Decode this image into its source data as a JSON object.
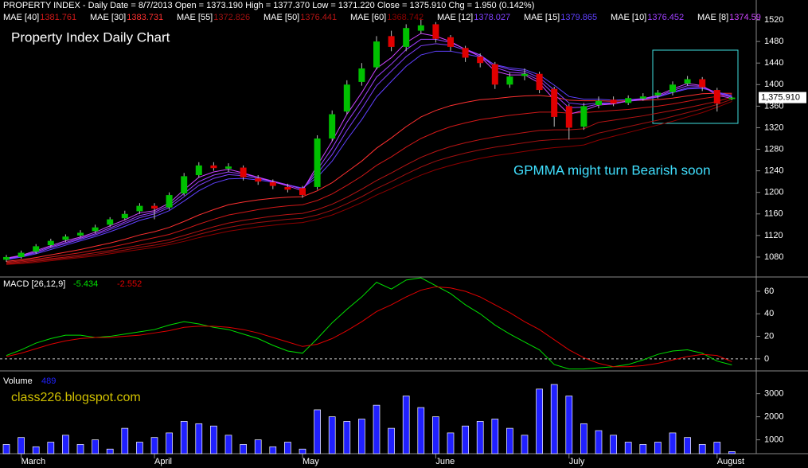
{
  "header": "PROPERTY INDEX - Daily Date = 8/7/2013  Open = 1373.190 High = 1377.370 Low = 1371.220 Close = 1375.910 Chg = 1.950 (0.142%)",
  "watermark": "class226.blogspot.com",
  "chart_data": [
    {
      "type": "candlestick",
      "title": "Property Index Daily Chart",
      "annotation": "GPMMA might turn Bearish soon",
      "categories": [
        null,
        "March",
        null,
        null,
        null,
        null,
        null,
        null,
        null,
        null,
        "April",
        null,
        null,
        null,
        null,
        null,
        null,
        null,
        null,
        null,
        "May",
        null,
        null,
        null,
        null,
        null,
        null,
        null,
        null,
        "June",
        null,
        null,
        null,
        null,
        null,
        null,
        null,
        null,
        "July",
        null,
        null,
        null,
        null,
        null,
        null,
        null,
        null,
        null,
        "August",
        null
      ],
      "open": [
        1075,
        1080,
        1090,
        1102,
        1112,
        1120,
        1128,
        1140,
        1152,
        1165,
        1175,
        1172,
        1198,
        1232,
        1250,
        1244,
        1246,
        1226,
        1219,
        1210,
        1208,
        1210,
        1300,
        1350,
        1405,
        1432,
        1490,
        1470,
        1500,
        1512,
        1488,
        1468,
        1452,
        1438,
        1400,
        1416,
        1420,
        1392,
        1360,
        1322,
        1362,
        1372,
        1366,
        1374,
        1380,
        1386,
        1402,
        1410,
        1390,
        1373.19
      ],
      "high": [
        1084,
        1092,
        1104,
        1114,
        1122,
        1130,
        1140,
        1154,
        1166,
        1180,
        1180,
        1200,
        1236,
        1256,
        1256,
        1254,
        1250,
        1232,
        1224,
        1216,
        1212,
        1306,
        1352,
        1408,
        1440,
        1490,
        1500,
        1512,
        1522,
        1516,
        1492,
        1472,
        1458,
        1442,
        1422,
        1430,
        1424,
        1396,
        1364,
        1366,
        1378,
        1378,
        1380,
        1384,
        1390,
        1406,
        1416,
        1414,
        1394,
        1377.37
      ],
      "low": [
        1071,
        1077,
        1086,
        1098,
        1108,
        1116,
        1124,
        1136,
        1148,
        1160,
        1150,
        1168,
        1194,
        1228,
        1240,
        1238,
        1222,
        1214,
        1206,
        1200,
        1190,
        1205,
        1295,
        1345,
        1398,
        1428,
        1462,
        1462,
        1494,
        1478,
        1462,
        1442,
        1432,
        1392,
        1394,
        1408,
        1384,
        1322,
        1298,
        1316,
        1356,
        1360,
        1362,
        1370,
        1374,
        1380,
        1398,
        1388,
        1350,
        1371.22
      ],
      "close": [
        1080,
        1088,
        1100,
        1110,
        1118,
        1125,
        1135,
        1150,
        1160,
        1175,
        1170,
        1195,
        1230,
        1250,
        1245,
        1248,
        1228,
        1220,
        1212,
        1205,
        1195,
        1300,
        1345,
        1400,
        1430,
        1480,
        1470,
        1505,
        1510,
        1485,
        1470,
        1450,
        1440,
        1400,
        1415,
        1420,
        1390,
        1340,
        1320,
        1360,
        1370,
        1365,
        1375,
        1378,
        1385,
        1400,
        1410,
        1395,
        1365,
        1375.91
      ],
      "up_color": "#00c000",
      "down_color": "#e00000",
      "series": [
        {
          "name": "MAE [40]",
          "color": "#d01818",
          "values": [
            1070,
            1073,
            1076,
            1080,
            1084,
            1088,
            1093,
            1098,
            1104,
            1110,
            1116,
            1122,
            1131,
            1141,
            1150,
            1158,
            1163,
            1168,
            1172,
            1175,
            1177,
            1185,
            1197,
            1213,
            1230,
            1250,
            1266,
            1284,
            1300,
            1312,
            1322,
            1329,
            1335,
            1339,
            1343,
            1346,
            1349,
            1349,
            1347,
            1348,
            1350,
            1352,
            1354,
            1357,
            1360,
            1364,
            1369,
            1374,
            1378,
            1381.761
          ]
        },
        {
          "name": "MAE [30]",
          "color": "#ff3030",
          "values": [
            1072,
            1075,
            1079,
            1084,
            1089,
            1094,
            1100,
            1106,
            1113,
            1121,
            1127,
            1135,
            1146,
            1158,
            1168,
            1177,
            1182,
            1186,
            1189,
            1191,
            1192,
            1203,
            1218,
            1238,
            1258,
            1282,
            1301,
            1322,
            1340,
            1352,
            1361,
            1367,
            1372,
            1374,
            1377,
            1379,
            1380,
            1377,
            1371,
            1370,
            1370,
            1369,
            1370,
            1371,
            1372,
            1375,
            1379,
            1383,
            1384,
            1383.731
          ]
        },
        {
          "name": "MAE [55]",
          "color": "#a01010",
          "values": [
            1067,
            1069,
            1072,
            1075,
            1078,
            1081,
            1085,
            1089,
            1093,
            1098,
            1102,
            1107,
            1114,
            1122,
            1129,
            1135,
            1140,
            1144,
            1147,
            1150,
            1152,
            1158,
            1167,
            1179,
            1192,
            1207,
            1220,
            1234,
            1247,
            1258,
            1266,
            1273,
            1279,
            1284,
            1288,
            1292,
            1296,
            1298,
            1299,
            1301,
            1310,
            1316,
            1322,
            1328,
            1334,
            1341,
            1348,
            1355,
            1363,
            1372.826
          ]
        },
        {
          "name": "MAE [50]",
          "color": "#b81414",
          "values": [
            1068,
            1071,
            1074,
            1077,
            1080,
            1084,
            1088,
            1092,
            1097,
            1102,
            1107,
            1112,
            1120,
            1128,
            1136,
            1143,
            1148,
            1152,
            1156,
            1159,
            1161,
            1168,
            1178,
            1191,
            1206,
            1222,
            1236,
            1251,
            1265,
            1276,
            1285,
            1292,
            1298,
            1303,
            1307,
            1311,
            1315,
            1316,
            1316,
            1318,
            1330,
            1334,
            1338,
            1342,
            1347,
            1352,
            1357,
            1363,
            1369,
            1376.441
          ]
        },
        {
          "name": "MAE [60]",
          "color": "#900000",
          "values": [
            1066,
            1068,
            1070,
            1073,
            1076,
            1079,
            1082,
            1086,
            1090,
            1094,
            1098,
            1103,
            1109,
            1116,
            1122,
            1128,
            1132,
            1136,
            1139,
            1142,
            1144,
            1150,
            1158,
            1169,
            1181,
            1195,
            1207,
            1220,
            1232,
            1242,
            1250,
            1257,
            1263,
            1268,
            1272,
            1276,
            1280,
            1283,
            1285,
            1288,
            1297,
            1304,
            1311,
            1318,
            1325,
            1332,
            1340,
            1348,
            1358,
            1368.742
          ]
        },
        {
          "name": "MAE [12]",
          "color": "#8040ff",
          "values": [
            1076,
            1081,
            1088,
            1097,
            1105,
            1113,
            1121,
            1131,
            1142,
            1153,
            1160,
            1172,
            1192,
            1213,
            1226,
            1233,
            1231,
            1226,
            1220,
            1214,
            1207,
            1235,
            1270,
            1315,
            1355,
            1398,
            1425,
            1452,
            1472,
            1476,
            1473,
            1464,
            1455,
            1436,
            1428,
            1425,
            1413,
            1390,
            1366,
            1363,
            1366,
            1366,
            1369,
            1372,
            1377,
            1386,
            1394,
            1395,
            1385,
            1378.027
          ]
        },
        {
          "name": "MAE [15]",
          "color": "#6040ff",
          "values": [
            1075,
            1080,
            1086,
            1094,
            1102,
            1110,
            1118,
            1127,
            1137,
            1148,
            1155,
            1166,
            1184,
            1203,
            1217,
            1225,
            1226,
            1223,
            1219,
            1214,
            1208,
            1228,
            1258,
            1298,
            1335,
            1377,
            1406,
            1434,
            1455,
            1462,
            1462,
            1457,
            1451,
            1437,
            1431,
            1428,
            1418,
            1399,
            1378,
            1373,
            1373,
            1371,
            1372,
            1374,
            1377,
            1385,
            1392,
            1393,
            1386,
            1379.865
          ]
        },
        {
          "name": "MAE [10]",
          "color": "#a040ff",
          "values": [
            1077,
            1082,
            1090,
            1099,
            1107,
            1115,
            1123,
            1134,
            1145,
            1157,
            1163,
            1176,
            1198,
            1220,
            1232,
            1238,
            1234,
            1228,
            1221,
            1214,
            1206,
            1242,
            1282,
            1330,
            1370,
            1414,
            1438,
            1465,
            1484,
            1484,
            1478,
            1466,
            1455,
            1432,
            1423,
            1421,
            1408,
            1382,
            1357,
            1358,
            1364,
            1365,
            1369,
            1373,
            1378,
            1389,
            1398,
            1397,
            1384,
            1376.452
          ]
        },
        {
          "name": "MAE [8]",
          "color": "#cc44ff",
          "values": [
            1078,
            1083,
            1092,
            1101,
            1110,
            1117,
            1126,
            1138,
            1149,
            1162,
            1166,
            1180,
            1205,
            1228,
            1238,
            1243,
            1236,
            1228,
            1220,
            1212,
            1203,
            1250,
            1295,
            1345,
            1385,
            1430,
            1450,
            1478,
            1495,
            1490,
            1480,
            1465,
            1452,
            1425,
            1418,
            1418,
            1403,
            1372,
            1345,
            1352,
            1362,
            1364,
            1370,
            1374,
            1380,
            1392,
            1402,
            1398,
            1380,
            1374.59
          ]
        }
      ],
      "ylim": [
        1043,
        1557
      ],
      "yticks": [
        1080,
        1120,
        1160,
        1200,
        1240,
        1280,
        1320,
        1360,
        1400,
        1440,
        1480,
        1520
      ],
      "last_price": {
        "value": 1375.91,
        "label": "1,375.910"
      }
    },
    {
      "type": "line",
      "title": "MACD [26,12,9]",
      "series": [
        {
          "color": "#00e000",
          "values": [
            3,
            8,
            14,
            18,
            21,
            21,
            19,
            20,
            22,
            24,
            26,
            30,
            33,
            31,
            28,
            26,
            22,
            18,
            12,
            7,
            5,
            18,
            32,
            44,
            55,
            68,
            62,
            70,
            72,
            65,
            58,
            48,
            40,
            30,
            22,
            15,
            8,
            -5,
            -9,
            -9,
            -8,
            -7,
            -5,
            -1,
            4,
            7,
            8,
            5,
            -2,
            -5.434
          ]
        },
        {
          "color": "#e00000",
          "values": [
            2,
            5,
            9,
            13,
            16,
            18,
            19,
            19,
            20,
            21,
            23,
            25,
            28,
            29,
            29,
            28,
            26,
            23,
            19,
            15,
            11,
            13,
            18,
            25,
            33,
            42,
            48,
            55,
            61,
            64,
            63,
            60,
            55,
            48,
            41,
            33,
            26,
            17,
            8,
            1,
            -4,
            -7,
            -7,
            -6,
            -4,
            -1,
            2,
            4,
            3,
            -2.552
          ]
        }
      ],
      "ylim": [
        -10,
        72
      ],
      "yticks": [
        0,
        20,
        40,
        60
      ]
    },
    {
      "type": "bar",
      "title": "Volume",
      "color": "#2020ff",
      "values": [
        800,
        1100,
        700,
        900,
        1200,
        800,
        1000,
        600,
        1500,
        900,
        1100,
        1300,
        1800,
        1700,
        1600,
        1200,
        800,
        1000,
        700,
        900,
        600,
        2300,
        2000,
        1800,
        1900,
        2500,
        1500,
        2900,
        2400,
        2000,
        1300,
        1600,
        1800,
        1900,
        1500,
        1200,
        3200,
        3400,
        2900,
        1700,
        1400,
        1200,
        900,
        800,
        900,
        1300,
        1100,
        800,
        900,
        489
      ],
      "ylim": [
        400,
        3850
      ],
      "yticks": [
        1000,
        2000,
        3000
      ]
    }
  ]
}
